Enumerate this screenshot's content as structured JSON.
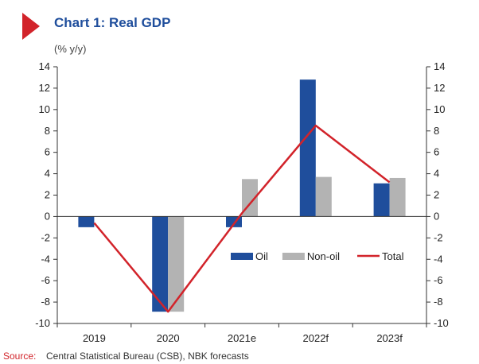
{
  "header": {
    "title": "Chart 1: Real GDP",
    "unit": "(% y/y)",
    "accent_color": "#d2232a",
    "title_color": "#1f4e9c"
  },
  "chart_data": {
    "type": "bar",
    "categories": [
      "2019",
      "2020",
      "2021e",
      "2022f",
      "2023f"
    ],
    "series": [
      {
        "name": "Oil",
        "type": "bar",
        "color": "#1f4e9c",
        "values": [
          -1.0,
          -8.9,
          -1.0,
          12.8,
          3.1
        ]
      },
      {
        "name": "Non-oil",
        "type": "bar",
        "color": "#b3b3b3",
        "values": [
          0.0,
          -8.9,
          3.5,
          3.7,
          3.6
        ]
      },
      {
        "name": "Total",
        "type": "line",
        "color": "#d2232a",
        "values": [
          -0.6,
          -8.9,
          0.3,
          8.5,
          3.2
        ]
      }
    ],
    "ylim": [
      -10,
      14
    ],
    "yticks": [
      -10,
      -8,
      -6,
      -4,
      -2,
      0,
      2,
      4,
      6,
      8,
      10,
      12,
      14
    ],
    "secondary_axis": true,
    "legend_position": "right, inside plot",
    "grid": false
  },
  "footer": {
    "source_label": "Source:",
    "source_text": "Central Statistical Bureau (CSB), NBK forecasts",
    "source_label_color": "#d2232a"
  }
}
